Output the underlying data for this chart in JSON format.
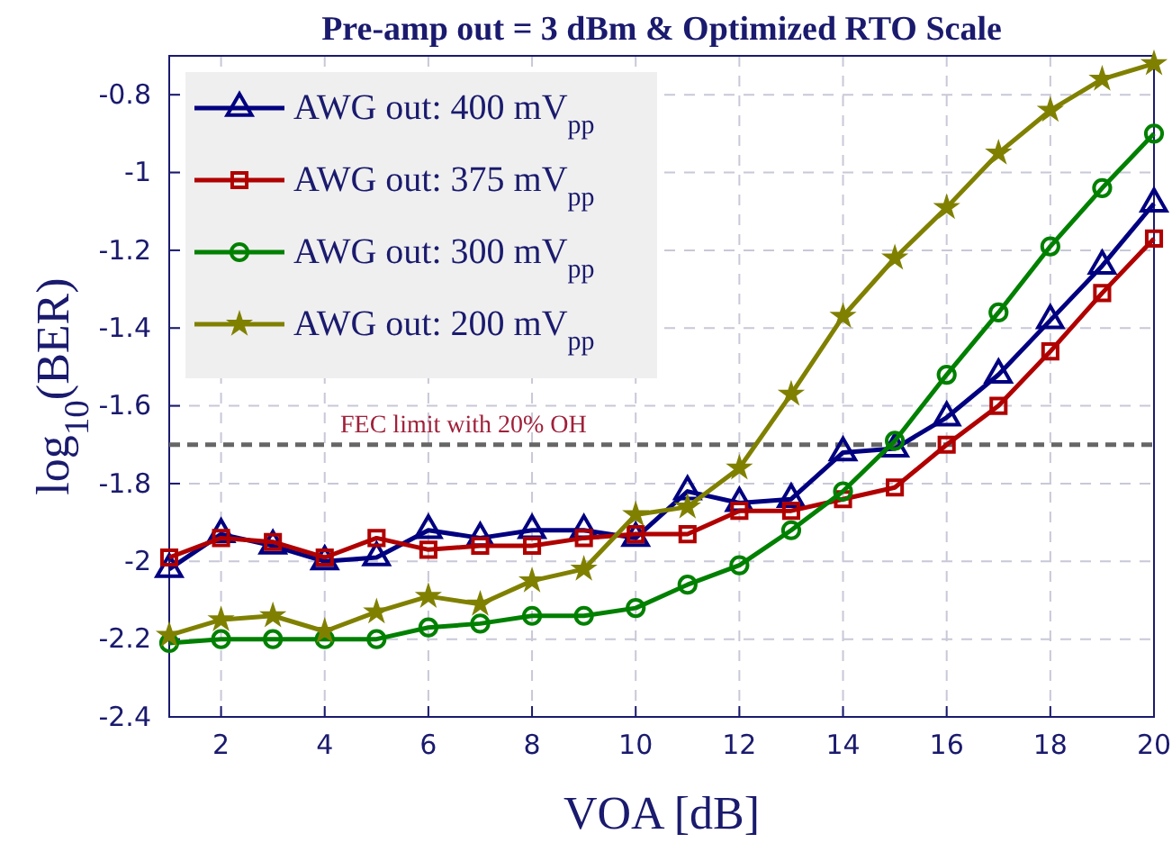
{
  "chart_data": {
    "type": "line",
    "title": "Pre-amp out = 3 dBm & Optimized RTO Scale",
    "xlabel": "VOA [dB]",
    "ylabel": "log$_{10}$(BER)",
    "x": [
      1,
      2,
      3,
      4,
      5,
      6,
      7,
      8,
      9,
      10,
      11,
      12,
      13,
      14,
      15,
      16,
      17,
      18,
      19,
      20
    ],
    "xlim": [
      1,
      20
    ],
    "xticks": [
      2,
      4,
      6,
      8,
      10,
      12,
      14,
      16,
      18,
      20
    ],
    "ylim": [
      -2.4,
      -0.7
    ],
    "yticks": [
      -2.4,
      -2.2,
      -2,
      -1.8,
      -1.6,
      -1.4,
      -1.2,
      -1,
      -0.8
    ],
    "grid": true,
    "legend": "top left",
    "line_style": "solid",
    "series": [
      {
        "name": "AWG out: 400 mV$_{pp}$",
        "color": "#000080",
        "marker": "triangle",
        "values": [
          -2.02,
          -1.93,
          -1.96,
          -2.0,
          -1.99,
          -1.92,
          -1.94,
          -1.92,
          -1.92,
          -1.94,
          -1.82,
          -1.85,
          -1.84,
          -1.72,
          -1.71,
          -1.63,
          -1.52,
          -1.38,
          -1.24,
          -1.08
        ]
      },
      {
        "name": "AWG out: 375 mV$_{pp}$",
        "color": "#b00000",
        "marker": "square",
        "values": [
          -1.99,
          -1.94,
          -1.95,
          -1.99,
          -1.94,
          -1.97,
          -1.96,
          -1.96,
          -1.94,
          -1.93,
          -1.93,
          -1.87,
          -1.87,
          -1.84,
          -1.81,
          -1.7,
          -1.6,
          -1.46,
          -1.31,
          -1.17
        ]
      },
      {
        "name": "AWG out: 300 mV$_{pp}$",
        "color": "#008000",
        "marker": "circle",
        "values": [
          -2.21,
          -2.2,
          -2.2,
          -2.2,
          -2.2,
          -2.17,
          -2.16,
          -2.14,
          -2.14,
          -2.12,
          -2.06,
          -2.01,
          -1.92,
          -1.82,
          -1.69,
          -1.52,
          -1.36,
          -1.19,
          -1.04,
          -0.9
        ]
      },
      {
        "name": "AWG out: 200 mV$_{pp}$",
        "color": "#808000",
        "marker": "star",
        "values": [
          -2.19,
          -2.15,
          -2.14,
          -2.18,
          -2.13,
          -2.09,
          -2.11,
          -2.05,
          -2.02,
          -1.88,
          -1.86,
          -1.76,
          -1.57,
          -1.37,
          -1.22,
          -1.09,
          -0.95,
          -0.84,
          -0.76,
          -0.72
        ]
      }
    ],
    "ref_lines": [
      {
        "axis": "y",
        "value": -1.7,
        "label": "FEC limit with 20% OH",
        "color": "#666666",
        "line_style": "dashed"
      }
    ]
  }
}
